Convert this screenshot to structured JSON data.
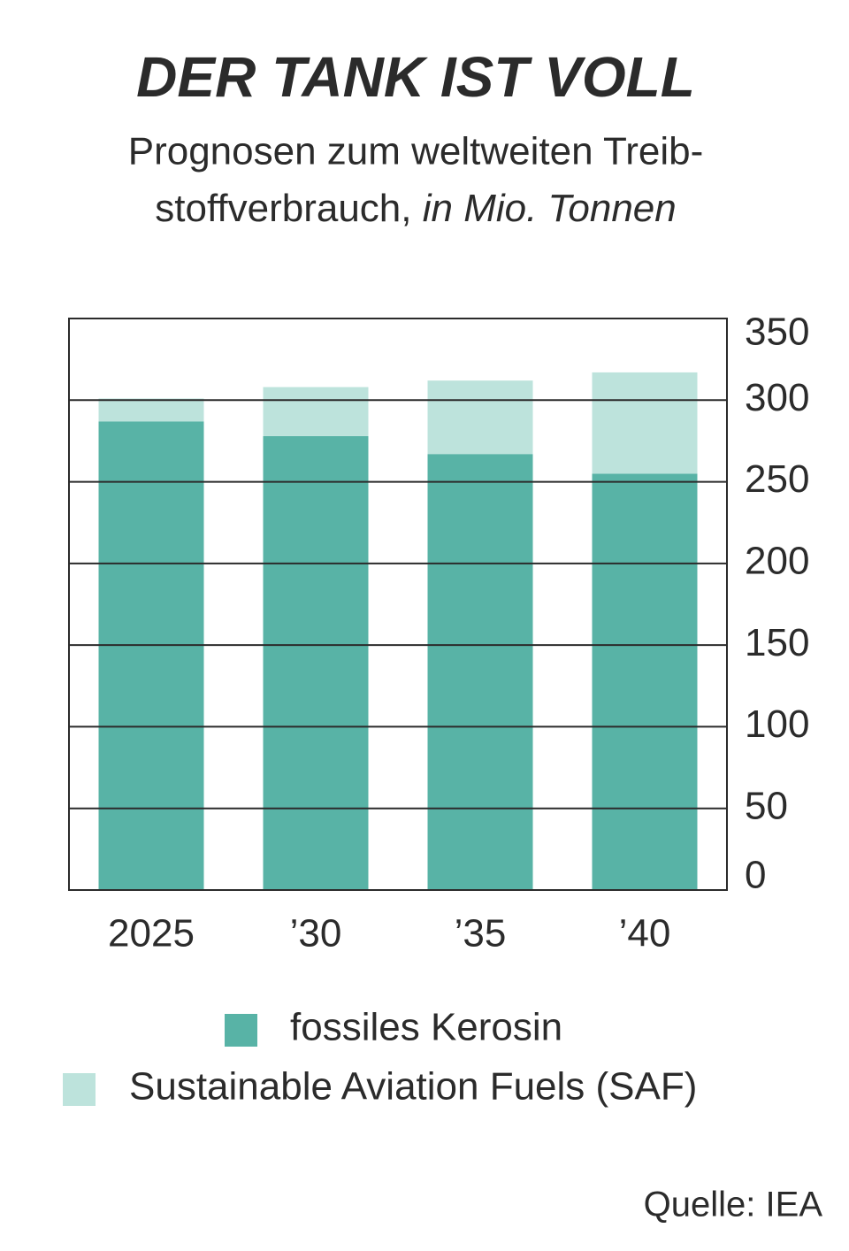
{
  "chart_data": {
    "type": "stacked_bar",
    "title": "DER TANK IST VOLL",
    "subtitle": [
      "Prognosen zum weltweiten Treib-",
      "stoffverbrauch,"
    ],
    "unit": "in Mio. Tonnen",
    "categories": [
      "2025",
      "’30",
      "’35",
      "’40"
    ],
    "series": [
      {
        "name": "fossiles Kerosin",
        "color": "#58b3a6",
        "values": [
          287,
          278,
          267,
          255
        ]
      },
      {
        "name": "Sustainable Aviation Fuels (SAF)",
        "color": "#bde3dc",
        "values": [
          14,
          30,
          45,
          62
        ]
      }
    ],
    "ylim": [
      0,
      350
    ],
    "yticks": [
      0,
      50,
      100,
      150,
      200,
      250,
      300,
      350
    ],
    "grid": true,
    "source": "Quelle: IEA"
  }
}
